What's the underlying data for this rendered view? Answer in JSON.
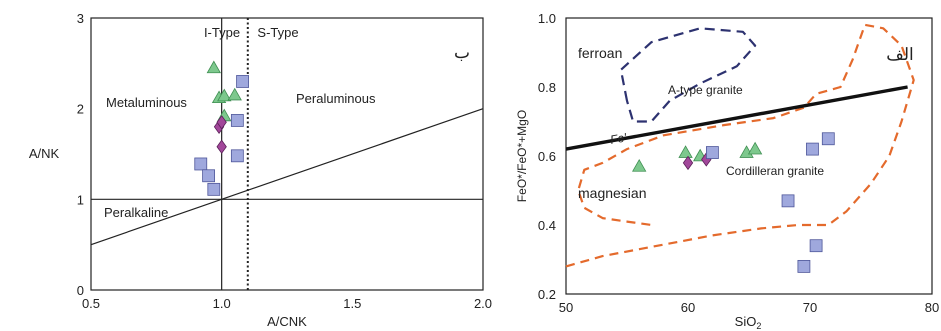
{
  "colors": {
    "triangle": "#7dc88d",
    "triangle_stroke": "#3f8f52",
    "square": "#9fa8dd",
    "square_stroke": "#4f579a",
    "diamond": "#a2479a",
    "diamond_stroke": "#5a2158",
    "fe_line": "#111111",
    "a_type_curve": "#2d3270",
    "cordilleran_curve": "#e46a2c"
  },
  "chart_data": [
    {
      "type": "scatter",
      "panel_label": "ب",
      "xlabel": "A/CNK",
      "ylabel": "A/NK",
      "xlim": [
        0.5,
        2.0
      ],
      "ylim": [
        0,
        3
      ],
      "xticks": [
        "0.5",
        "1.0",
        "1.5",
        "2.0"
      ],
      "yticks": [
        "0",
        "1",
        "2",
        "3"
      ],
      "region_labels": {
        "i_type": "I-Type",
        "s_type": "S-Type",
        "metaluminous": "Metaluminous",
        "peraluminous": "Peraluminous",
        "peralkaline": "Peralkaline"
      },
      "boundaries": {
        "acnk_1_line": [
          [
            1.0,
            0
          ],
          [
            1.0,
            3
          ]
        ],
        "ank_1_line": [
          [
            0.5,
            1.0
          ],
          [
            2.0,
            1.0
          ]
        ],
        "diagonal_line": [
          [
            0.5,
            0.5
          ],
          [
            2.0,
            2.0
          ]
        ],
        "i_s_divider_dotted": [
          [
            1.1,
            0
          ],
          [
            1.1,
            3
          ]
        ]
      },
      "series": [
        {
          "marker": "triangle",
          "points": [
            [
              0.97,
              2.45
            ],
            [
              0.99,
              2.12
            ],
            [
              1.01,
              2.14
            ],
            [
              1.05,
              2.15
            ],
            [
              1.01,
              1.92
            ]
          ]
        },
        {
          "marker": "diamond",
          "points": [
            [
              0.99,
              1.8
            ],
            [
              1.0,
              1.85
            ],
            [
              1.0,
              1.58
            ]
          ]
        },
        {
          "marker": "square",
          "points": [
            [
              1.08,
              2.3
            ],
            [
              1.06,
              1.87
            ],
            [
              1.06,
              1.48
            ],
            [
              0.92,
              1.39
            ],
            [
              0.95,
              1.26
            ],
            [
              0.97,
              1.11
            ]
          ]
        }
      ]
    },
    {
      "type": "scatter",
      "panel_label": "الف",
      "xlabel": "SiO",
      "xlabel_sub": "2",
      "ylabel": "FeO*/FeO*+MgO",
      "xlim": [
        50,
        80
      ],
      "ylim": [
        0.2,
        1.0
      ],
      "xticks": [
        "50",
        "60",
        "70",
        "80"
      ],
      "yticks": [
        "0.2",
        "0.4",
        "0.6",
        "0.8",
        "1.0"
      ],
      "region_labels": {
        "ferroan": "ferroan",
        "magnesian": "magnesian",
        "a_type": "A-type granite",
        "cordilleran": "Cordilleran granite",
        "fe_line": "Fe'"
      },
      "fe_line": [
        [
          50,
          0.62
        ],
        [
          78,
          0.8
        ]
      ],
      "a_type_curve": [
        [
          55.0,
          0.76
        ],
        [
          54.5,
          0.85
        ],
        [
          57.0,
          0.93
        ],
        [
          61.0,
          0.97
        ],
        [
          64.5,
          0.96
        ],
        [
          65.5,
          0.92
        ],
        [
          64.0,
          0.86
        ],
        [
          61.0,
          0.81
        ],
        [
          58.5,
          0.76
        ],
        [
          57.0,
          0.7
        ],
        [
          55.5,
          0.7
        ],
        [
          55.0,
          0.76
        ]
      ],
      "cordilleran_curve": [
        [
          50.0,
          0.28
        ],
        [
          53.0,
          0.31
        ],
        [
          56.0,
          0.33
        ],
        [
          59.0,
          0.35
        ],
        [
          62.0,
          0.37
        ],
        [
          66.0,
          0.39
        ],
        [
          69.0,
          0.4
        ],
        [
          71.5,
          0.4
        ],
        [
          73.0,
          0.44
        ],
        [
          75.0,
          0.52
        ],
        [
          76.5,
          0.6
        ],
        [
          77.5,
          0.7
        ],
        [
          78.5,
          0.82
        ],
        [
          77.5,
          0.92
        ],
        [
          76.0,
          0.97
        ],
        [
          74.5,
          0.98
        ],
        [
          73.5,
          0.88
        ],
        [
          72.5,
          0.8
        ],
        [
          70.5,
          0.78
        ],
        [
          69.5,
          0.74
        ],
        [
          67.0,
          0.71
        ],
        [
          63.0,
          0.69
        ],
        [
          58.0,
          0.66
        ],
        [
          55.0,
          0.62
        ],
        [
          53.0,
          0.58
        ],
        [
          51.5,
          0.56
        ],
        [
          51.0,
          0.5
        ],
        [
          51.5,
          0.45
        ],
        [
          53.0,
          0.42
        ],
        [
          55.0,
          0.41
        ],
        [
          57.0,
          0.4
        ]
      ],
      "series": [
        {
          "marker": "triangle",
          "points": [
            [
              56.0,
              0.57
            ],
            [
              59.8,
              0.61
            ],
            [
              61.0,
              0.6
            ],
            [
              64.8,
              0.61
            ],
            [
              65.5,
              0.62
            ]
          ]
        },
        {
          "marker": "diamond",
          "points": [
            [
              60.0,
              0.58
            ],
            [
              61.5,
              0.59
            ]
          ]
        },
        {
          "marker": "square",
          "points": [
            [
              62.0,
              0.61
            ],
            [
              68.2,
              0.47
            ],
            [
              70.2,
              0.62
            ],
            [
              71.5,
              0.65
            ],
            [
              70.5,
              0.34
            ],
            [
              69.5,
              0.28
            ]
          ]
        }
      ]
    }
  ]
}
